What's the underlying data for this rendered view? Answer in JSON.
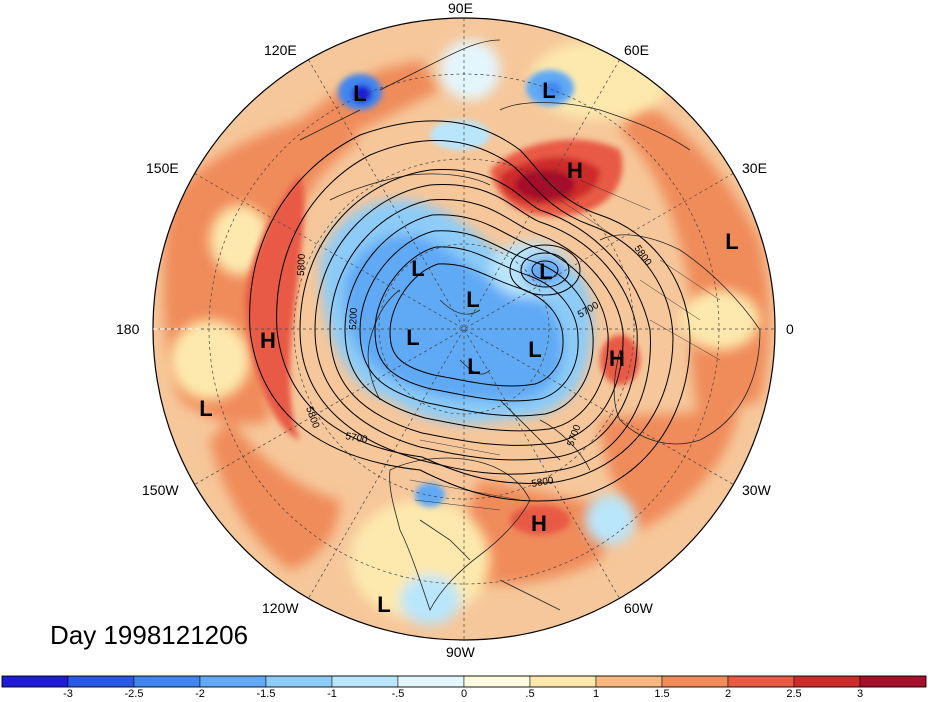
{
  "title": "Day 1998121206",
  "longitude_labels": {
    "lon_90e": "90E",
    "lon_60e": "60E",
    "lon_30e": "30E",
    "lon_0": "0",
    "lon_30w": "30W",
    "lon_60w": "60W",
    "lon_90w": "90W",
    "lon_120w": "120W",
    "lon_150w": "150W",
    "lon_180": "180",
    "lon_150e": "150E",
    "lon_120e": "120E"
  },
  "pressure_markers": [
    {
      "type": "L",
      "name": "low-far-east-siberia"
    },
    {
      "type": "L",
      "name": "low-north-asia"
    },
    {
      "type": "H",
      "name": "high-north-russia"
    },
    {
      "type": "L",
      "name": "low-europe-west"
    },
    {
      "type": "L",
      "name": "low-barents"
    },
    {
      "type": "L",
      "name": "low-arctic-1"
    },
    {
      "type": "L",
      "name": "low-arctic-2"
    },
    {
      "type": "L",
      "name": "low-arctic-3"
    },
    {
      "type": "L",
      "name": "low-greenland"
    },
    {
      "type": "L",
      "name": "low-canada"
    },
    {
      "type": "H",
      "name": "high-north-pacific"
    },
    {
      "type": "H",
      "name": "high-north-atlantic"
    },
    {
      "type": "L",
      "name": "low-pacific"
    },
    {
      "type": "H",
      "name": "high-caribbean"
    },
    {
      "type": "L",
      "name": "low-east-pacific"
    }
  ],
  "contour_labels": [
    "5800",
    "5200",
    "5800",
    "5700",
    "5700",
    "5800",
    "5800",
    "5700"
  ],
  "colorbar": {
    "labels": [
      "-3",
      "-2.5",
      "-2",
      "-1.5",
      "-1",
      "-.5",
      "0",
      ".5",
      "1",
      "1.5",
      "2",
      "2.5",
      "3"
    ],
    "colors": [
      "#1f1ad6",
      "#2a58e6",
      "#3f86f0",
      "#5fa9f5",
      "#8dccf7",
      "#b9e6fb",
      "#e4f6fd",
      "#fffbe2",
      "#fde9ad",
      "#f8b880",
      "#f08b5a",
      "#e85a44",
      "#cd2a2c",
      "#a5102a"
    ]
  },
  "colors": {
    "ocean_field": "#f6c79a",
    "neg_anomaly": "#5fa9f5",
    "pos_anomaly": "#e85a44"
  }
}
